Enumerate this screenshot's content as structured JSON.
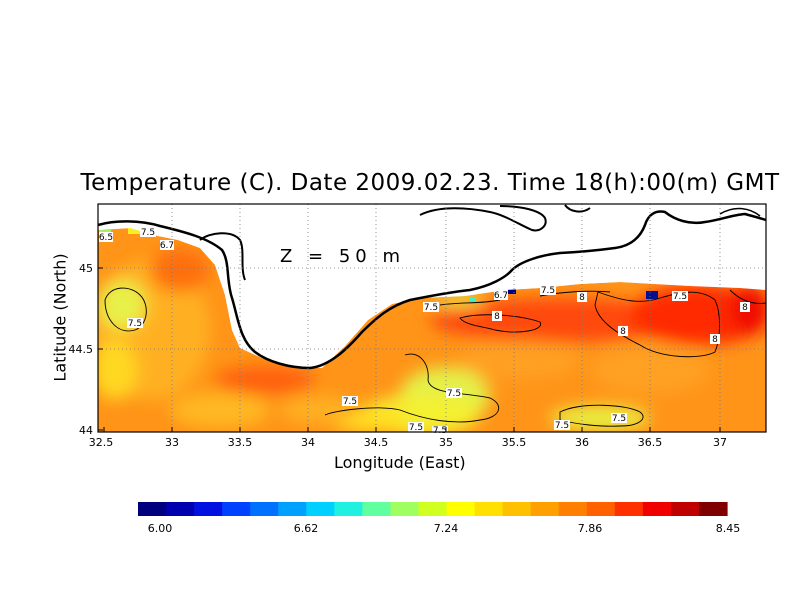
{
  "title": "Temperature (C). Date 2009.02.23. Time 18(h):00(m) GMT",
  "depth_label": "Z = 50 m",
  "x_axis": {
    "label": "Longitude (East)",
    "ticks": [
      "32.5",
      "33",
      "33.5",
      "34",
      "34.5",
      "35",
      "35.5",
      "36",
      "36.5",
      "37"
    ]
  },
  "y_axis": {
    "label": "Latitude (North)",
    "ticks": [
      "44",
      "44.5",
      "45"
    ]
  },
  "colorbar": {
    "ticks": [
      "6.00",
      "6.62",
      "7.24",
      "7.86",
      "8.45"
    ],
    "min": 6.0,
    "max": 8.45,
    "colors": [
      "#00007f",
      "#0000b0",
      "#0010e0",
      "#0040ff",
      "#0070ff",
      "#00a0ff",
      "#00d0ff",
      "#20f0e0",
      "#60ffa0",
      "#a0ff60",
      "#d0ff20",
      "#ffff00",
      "#ffe000",
      "#ffc000",
      "#ffa000",
      "#ff8000",
      "#ff6000",
      "#ff3000",
      "#f00000",
      "#c00000",
      "#800000"
    ]
  },
  "contour_labels": [
    "7.5",
    "7.5",
    "7.5",
    "7.5",
    "7.5",
    "7.5",
    "7.5",
    "7.5",
    "7.5",
    "7.5",
    "7.5",
    "8",
    "8",
    "8",
    "8",
    "8",
    "6.5",
    "6.7",
    "6.7"
  ],
  "colors": {
    "warm": "#ff8c1a",
    "hot": "#ff3000",
    "mid": "#ffd000",
    "cool": "#d8f040"
  }
}
